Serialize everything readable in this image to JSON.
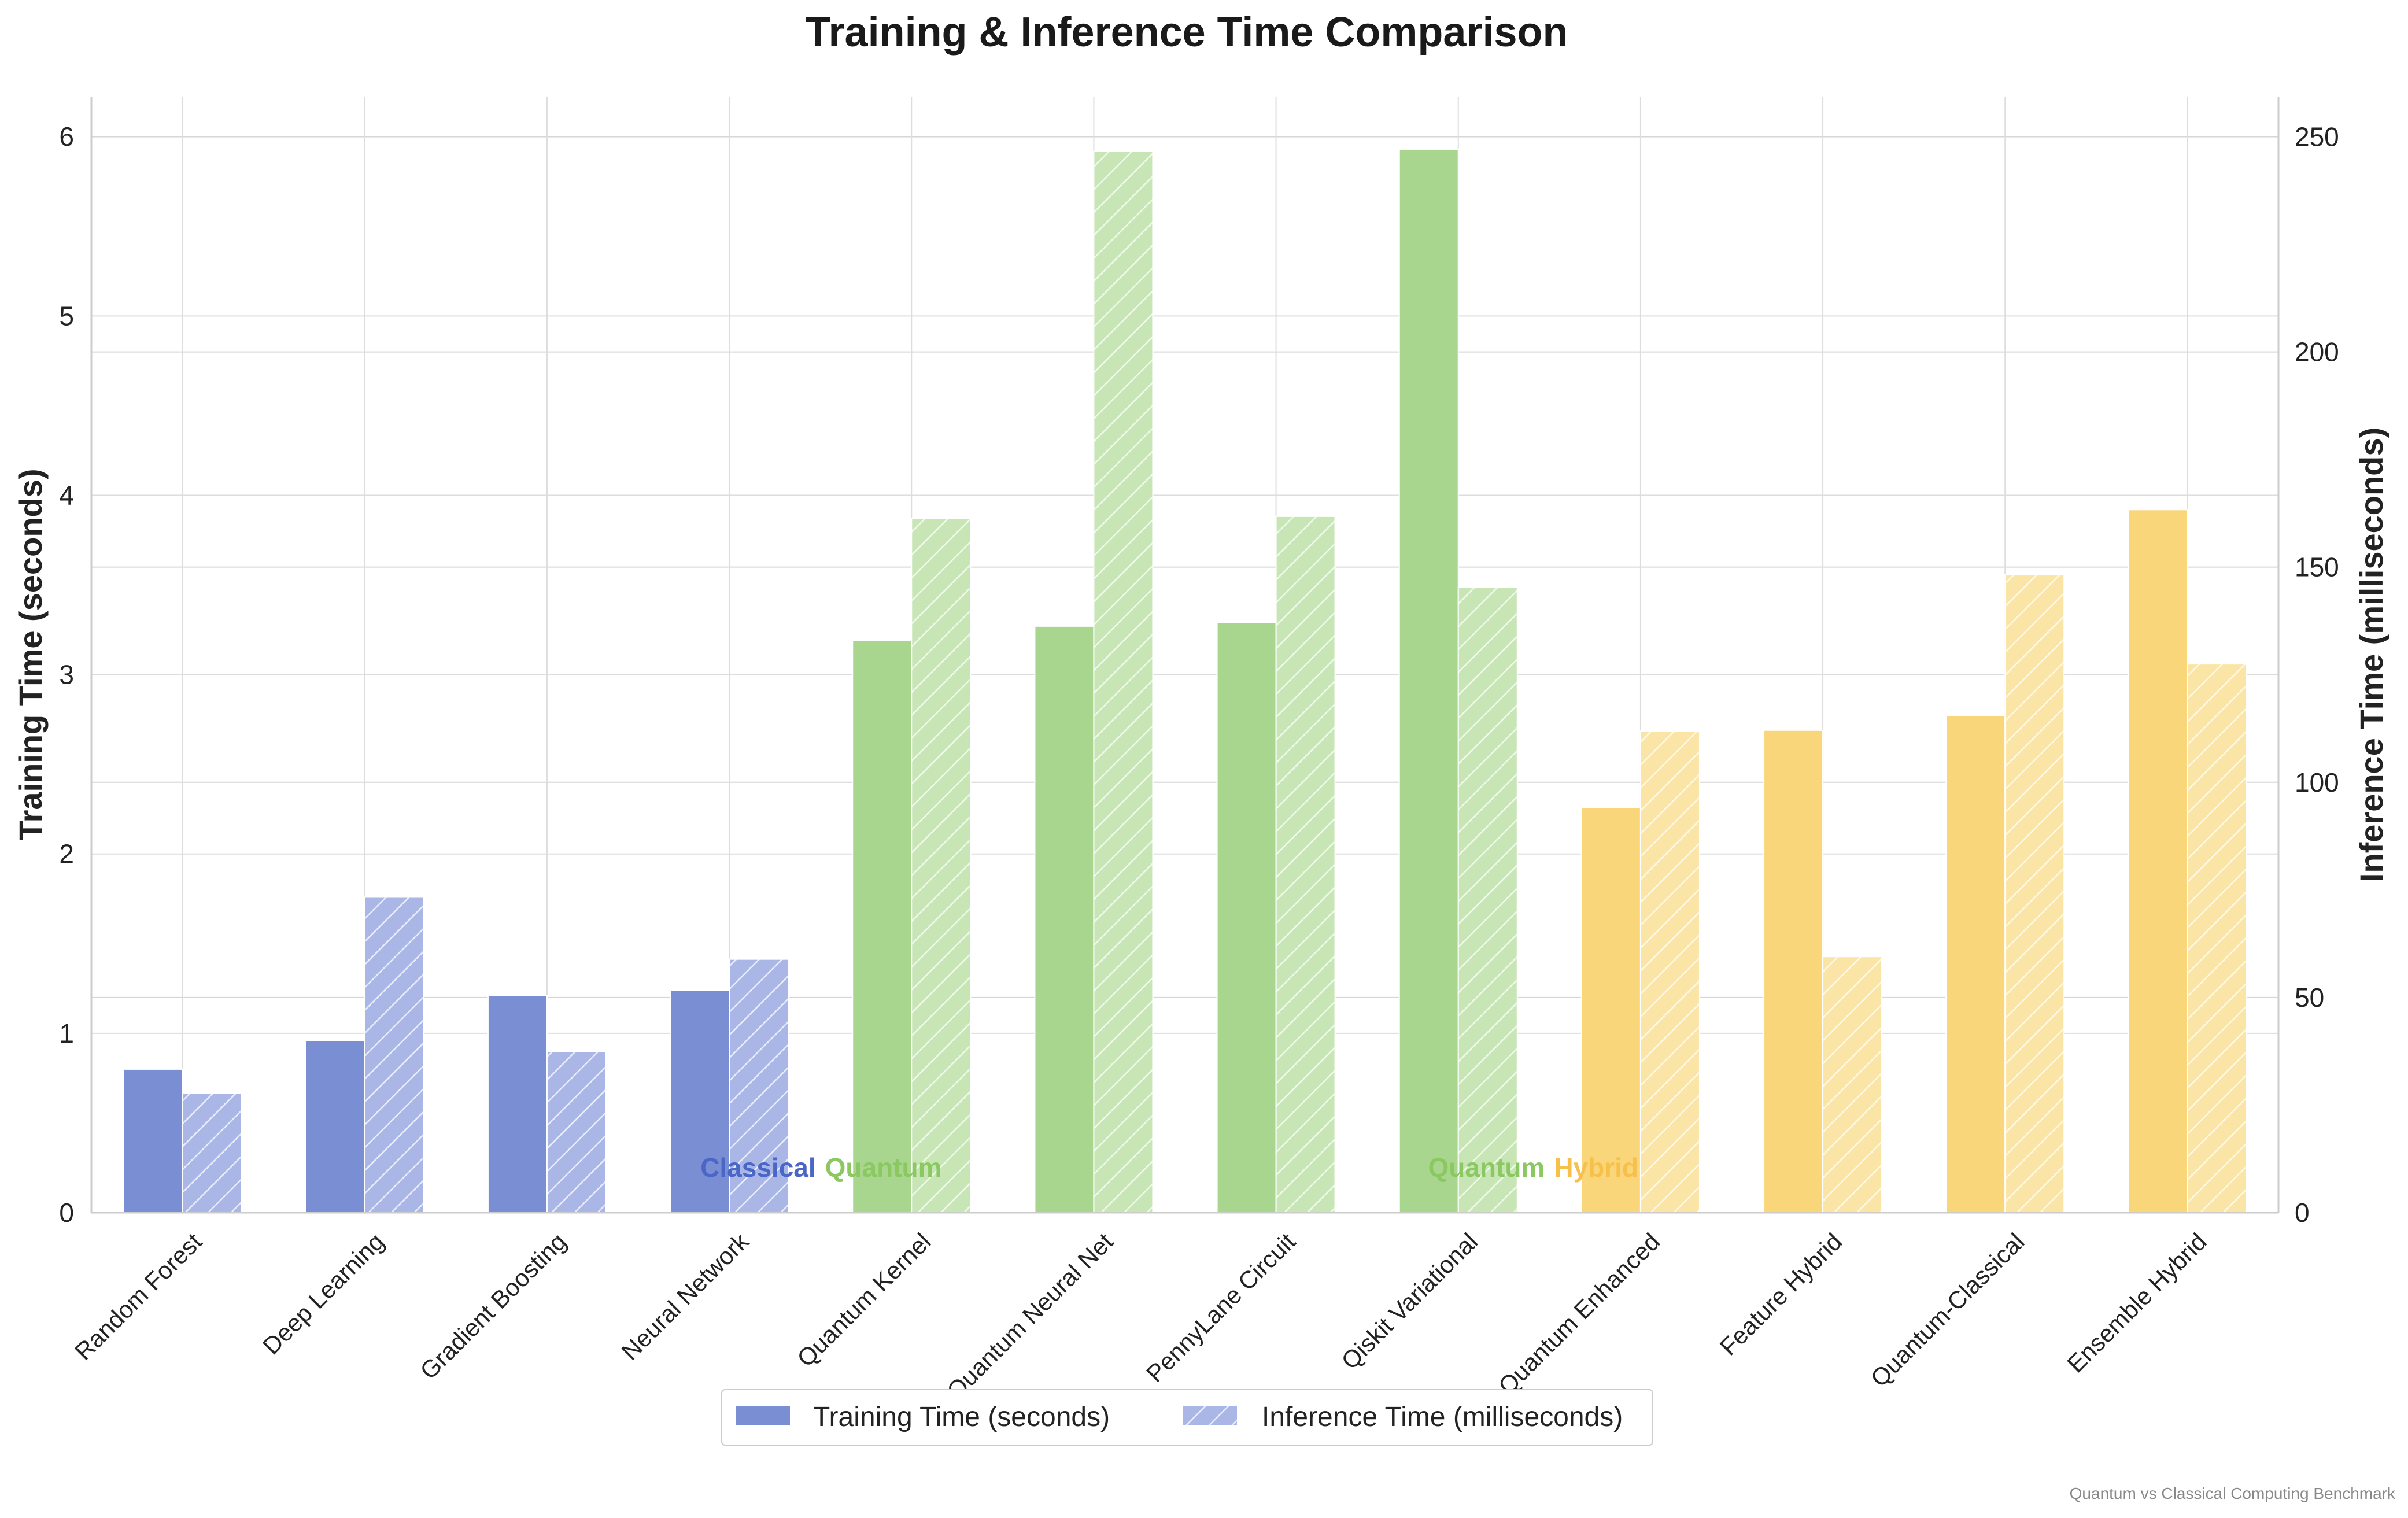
{
  "chart_data": {
    "type": "bar",
    "title": "Training & Inference Time Comparison",
    "ylabel_left": "Training Time (seconds)",
    "ylabel_right": "Inference Time (milliseconds)",
    "ylim_left": [
      0,
      6.22
    ],
    "ylim_right": [
      0,
      259.2
    ],
    "yticks_left": [
      0,
      1,
      2,
      3,
      4,
      5,
      6
    ],
    "yticks_right": [
      0,
      50,
      100,
      150,
      200,
      250
    ],
    "grid": true,
    "legend_placement": "bottom-center",
    "categories": [
      "Random Forest",
      "Deep Learning",
      "Gradient Boosting",
      "Neural Network",
      "Quantum Kernel",
      "Quantum Neural Net",
      "PennyLane Circuit",
      "Qiskit Variational",
      "Quantum Enhanced",
      "Feature Hybrid",
      "Quantum-Classical",
      "Ensemble Hybrid"
    ],
    "groups": [
      "Classical",
      "Classical",
      "Classical",
      "Classical",
      "Quantum",
      "Quantum",
      "Quantum",
      "Quantum",
      "Hybrid",
      "Hybrid",
      "Hybrid",
      "Hybrid"
    ],
    "series": [
      {
        "name": "Training Time (seconds)",
        "axis": "left",
        "values": [
          0.8,
          0.96,
          1.21,
          1.24,
          3.19,
          3.27,
          3.29,
          5.93,
          2.26,
          2.69,
          2.77,
          3.92
        ]
      },
      {
        "name": "Inference Time (milliseconds)",
        "axis": "right",
        "values": [
          27.8,
          73.3,
          37.4,
          58.9,
          161.3,
          246.6,
          161.8,
          145.3,
          111.9,
          59.5,
          148.2,
          127.5
        ]
      }
    ],
    "group_labels": [
      {
        "text": "Classical",
        "color": "#4a67c8"
      },
      {
        "text": "Quantum",
        "color": "#8cc862"
      },
      {
        "text": "Quantum",
        "color": "#8cc862"
      },
      {
        "text": "Hybrid",
        "color": "#f7c04a"
      }
    ],
    "colors": {
      "Classical": "#7a8fd3",
      "Quantum": "#a8d68e",
      "Hybrid": "#f9d67a",
      "Classical_light": "#aab7e6",
      "Quantum_light": "#c8e6b5",
      "Hybrid_light": "#fbe5a6"
    },
    "footnote": "Quantum vs Classical Computing Benchmark"
  }
}
